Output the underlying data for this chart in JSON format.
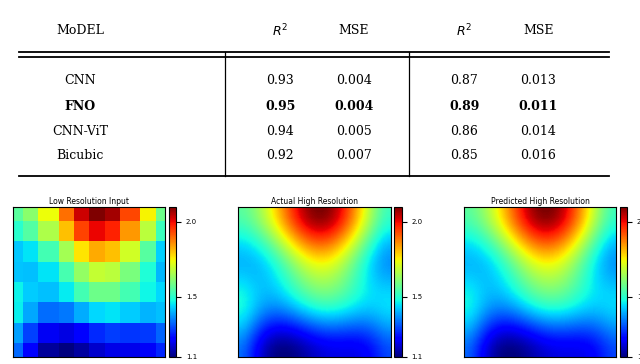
{
  "table": {
    "models_display": [
      "CNN",
      "FNO",
      "CNN-ViT",
      "Bicubic"
    ],
    "col1_r2": [
      "0.93",
      "0.95",
      "0.94",
      "0.92"
    ],
    "col1_mse": [
      "0.004",
      "0.004",
      "0.005",
      "0.007"
    ],
    "col2_r2": [
      "0.87",
      "0.89",
      "0.86",
      "0.85"
    ],
    "col2_mse": [
      "0.013",
      "0.011",
      "0.014",
      "0.016"
    ],
    "bold_row": 1
  },
  "heatmaps": {
    "titles": [
      "Low Resolution Input",
      "Actual High Resolution",
      "Predicted High Resolution"
    ],
    "vmin": 1.1,
    "vmax": 2.1,
    "colorbar_ticks": [
      1.1,
      1.5,
      2.0
    ]
  }
}
